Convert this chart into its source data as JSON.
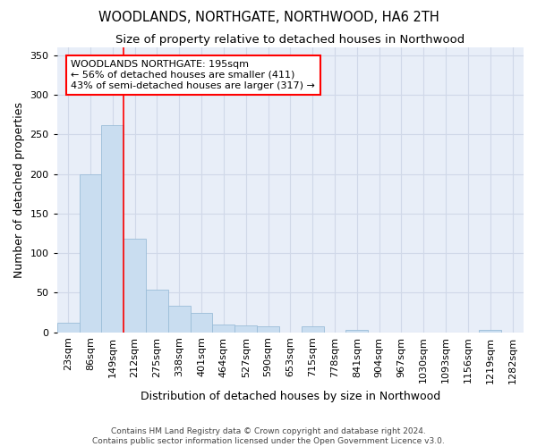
{
  "title": "WOODLANDS, NORTHGATE, NORTHWOOD, HA6 2TH",
  "subtitle": "Size of property relative to detached houses in Northwood",
  "xlabel": "Distribution of detached houses by size in Northwood",
  "ylabel": "Number of detached properties",
  "categories": [
    "23sqm",
    "86sqm",
    "149sqm",
    "212sqm",
    "275sqm",
    "338sqm",
    "401sqm",
    "464sqm",
    "527sqm",
    "590sqm",
    "653sqm",
    "715sqm",
    "778sqm",
    "841sqm",
    "904sqm",
    "967sqm",
    "1030sqm",
    "1093sqm",
    "1156sqm",
    "1219sqm",
    "1282sqm"
  ],
  "values": [
    12,
    200,
    262,
    118,
    54,
    34,
    24,
    10,
    9,
    7,
    0,
    8,
    0,
    3,
    0,
    0,
    0,
    0,
    0,
    3,
    0
  ],
  "bar_color": "#c9ddf0",
  "bar_edge_color": "#9bbdd8",
  "grid_color": "#d0d8e8",
  "background_color": "#e8eef8",
  "annotation_line1": "WOODLANDS NORTHGATE: 195sqm",
  "annotation_line2": "← 56% of detached houses are smaller (411)",
  "annotation_line3": "43% of semi-detached houses are larger (317) →",
  "red_line_x": 2.5,
  "ylim": [
    0,
    360
  ],
  "yticks": [
    0,
    50,
    100,
    150,
    200,
    250,
    300,
    350
  ],
  "footer_line1": "Contains HM Land Registry data © Crown copyright and database right 2024.",
  "footer_line2": "Contains public sector information licensed under the Open Government Licence v3.0.",
  "title_fontsize": 10.5,
  "subtitle_fontsize": 9.5,
  "ylabel_fontsize": 9,
  "xlabel_fontsize": 9,
  "tick_fontsize": 8,
  "footer_fontsize": 6.5,
  "annot_fontsize": 8
}
